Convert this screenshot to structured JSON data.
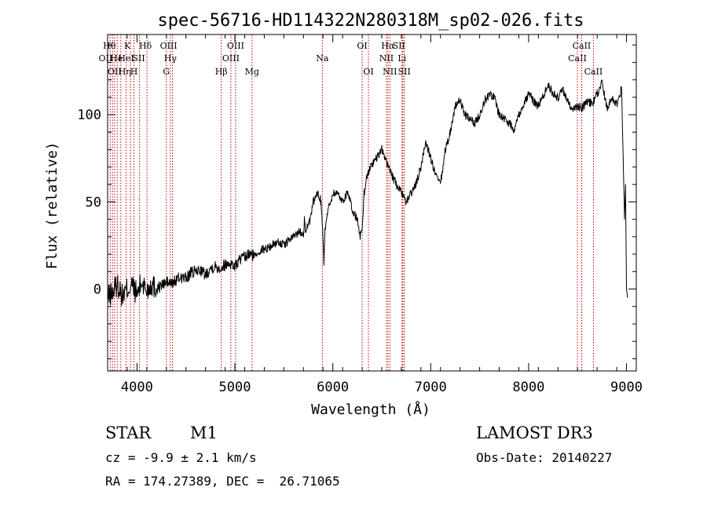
{
  "chart_data": {
    "type": "line",
    "title": "spec-56716-HD114322N280318M_sp02-026.fits",
    "xlabel": "Wavelength (Å)",
    "ylabel": "Flux (relative)",
    "xlim": [
      3700,
      9100
    ],
    "ylim": [
      -47,
      146
    ],
    "xticks": [
      4000,
      5000,
      6000,
      7000,
      8000,
      9000
    ],
    "yticks": [
      0,
      50,
      100
    ],
    "series": [
      {
        "name": "flux",
        "x": [
          3700,
          3750,
          3800,
          3850,
          3900,
          3950,
          4000,
          4050,
          4100,
          4150,
          4200,
          4250,
          4300,
          4350,
          4400,
          4450,
          4500,
          4550,
          4600,
          4650,
          4700,
          4750,
          4800,
          4850,
          4900,
          4950,
          5000,
          5050,
          5100,
          5150,
          5200,
          5250,
          5300,
          5350,
          5400,
          5450,
          5500,
          5550,
          5600,
          5650,
          5700,
          5710,
          5720,
          5750,
          5780,
          5800,
          5820,
          5850,
          5880,
          5900,
          5910,
          5920,
          5950,
          6000,
          6050,
          6100,
          6150,
          6200,
          6250,
          6280,
          6300,
          6320,
          6350,
          6400,
          6450,
          6500,
          6520,
          6550,
          6580,
          6600,
          6650,
          6700,
          6750,
          6800,
          6850,
          6900,
          6950,
          7000,
          7050,
          7100,
          7150,
          7200,
          7250,
          7300,
          7350,
          7400,
          7450,
          7500,
          7550,
          7600,
          7650,
          7700,
          7750,
          7800,
          7850,
          7900,
          7950,
          8000,
          8050,
          8100,
          8150,
          8200,
          8250,
          8300,
          8350,
          8400,
          8450,
          8500,
          8550,
          8600,
          8650,
          8700,
          8750,
          8800,
          8850,
          8900,
          8950,
          8980,
          8990,
          9000,
          9010
        ],
        "values": [
          -5,
          -2,
          3,
          -4,
          0,
          2,
          -3,
          4,
          -1,
          3,
          0,
          2,
          4,
          3,
          5,
          7,
          6,
          9,
          10,
          11,
          8,
          12,
          13,
          12,
          14,
          15,
          13,
          17,
          18,
          20,
          19,
          22,
          23,
          24,
          26,
          27,
          25,
          28,
          30,
          33,
          32,
          40,
          34,
          36,
          42,
          50,
          52,
          55,
          50,
          30,
          15,
          35,
          45,
          55,
          55,
          50,
          56,
          45,
          40,
          30,
          35,
          55,
          65,
          72,
          75,
          80,
          78,
          72,
          70,
          65,
          60,
          55,
          50,
          55,
          60,
          70,
          85,
          75,
          65,
          60,
          80,
          90,
          105,
          108,
          100,
          97,
          95,
          100,
          108,
          112,
          110,
          100,
          98,
          95,
          92,
          100,
          106,
          112,
          108,
          105,
          111,
          117,
          112,
          110,
          114,
          108,
          102,
          105,
          104,
          108,
          106,
          112,
          118,
          104,
          110,
          106,
          115,
          40,
          60,
          0,
          -5
        ],
        "color": "#000000"
      }
    ],
    "lines": [
      {
        "x": 3727,
        "label": "OII",
        "row": 2,
        "dx": -6
      },
      {
        "x": 3750,
        "label": "Hθ",
        "row": 0,
        "dx": -4
      },
      {
        "x": 3771,
        "label": "OII",
        "row": 3,
        "dx": 0
      },
      {
        "x": 3798,
        "label": "He",
        "row": 1,
        "dx": -1
      },
      {
        "x": 3835,
        "label": "Hη",
        "row": 3,
        "dx": 5
      },
      {
        "x": 3889,
        "label": "HeI",
        "row": 1,
        "dx": 0
      },
      {
        "x": 3934,
        "label": "K",
        "row": 0,
        "dx": -4
      },
      {
        "x": 3969,
        "label": "H",
        "row": 3,
        "dx": 0
      },
      {
        "x": 4026,
        "label": "SII",
        "row": 1,
        "dx": -1
      },
      {
        "x": 4102,
        "label": "Hδ",
        "row": 0,
        "dx": -2
      },
      {
        "x": 4300,
        "label": "G",
        "row": 3,
        "dx": 0
      },
      {
        "x": 4341,
        "label": "Hγ",
        "row": 2,
        "dx": 0
      },
      {
        "x": 4363,
        "label": "OIII",
        "row": 0,
        "dx": -5
      },
      {
        "x": 4861,
        "label": "Hβ",
        "row": 3,
        "dx": 0
      },
      {
        "x": 4959,
        "label": "OIII",
        "row": 2,
        "dx": 0
      },
      {
        "x": 5007,
        "label": "OIII",
        "row": 0,
        "dx": 0
      },
      {
        "x": 5175,
        "label": "Mg",
        "row": 3,
        "dx": 0
      },
      {
        "x": 5893,
        "label": "Na",
        "row": 2,
        "dx": 0
      },
      {
        "x": 6300,
        "label": "OI",
        "row": 0,
        "dx": 0
      },
      {
        "x": 6364,
        "label": "OI",
        "row": 3,
        "dx": 0
      },
      {
        "x": 6548,
        "label": "NII",
        "row": 2,
        "dx": 0
      },
      {
        "x": 6563,
        "label": "Hα",
        "row": 0,
        "dx": 0
      },
      {
        "x": 6583,
        "label": "NII",
        "row": 3,
        "dx": 0
      },
      {
        "x": 6707,
        "label": "Li",
        "row": 2,
        "dx": 0
      },
      {
        "x": 6716,
        "label": "SII",
        "row": 0,
        "dx": -5
      },
      {
        "x": 6731,
        "label": "SII",
        "row": 3,
        "dx": 0
      },
      {
        "x": 8498,
        "label": "CaII",
        "row": 1,
        "dx": 0
      },
      {
        "x": 8542,
        "label": "CaII",
        "row": 0,
        "dx": 0
      },
      {
        "x": 8662,
        "label": "CaII",
        "row": 3,
        "dx": 0
      }
    ]
  },
  "info": {
    "object_class": "STAR",
    "subclass": "M1",
    "cz": "cz = -9.9 ± 2.1 km/s",
    "coords": "RA = 174.27389, DEC =  26.71065",
    "survey": "LAMOST DR3",
    "obs_date": "Obs-Date: 20140227"
  }
}
